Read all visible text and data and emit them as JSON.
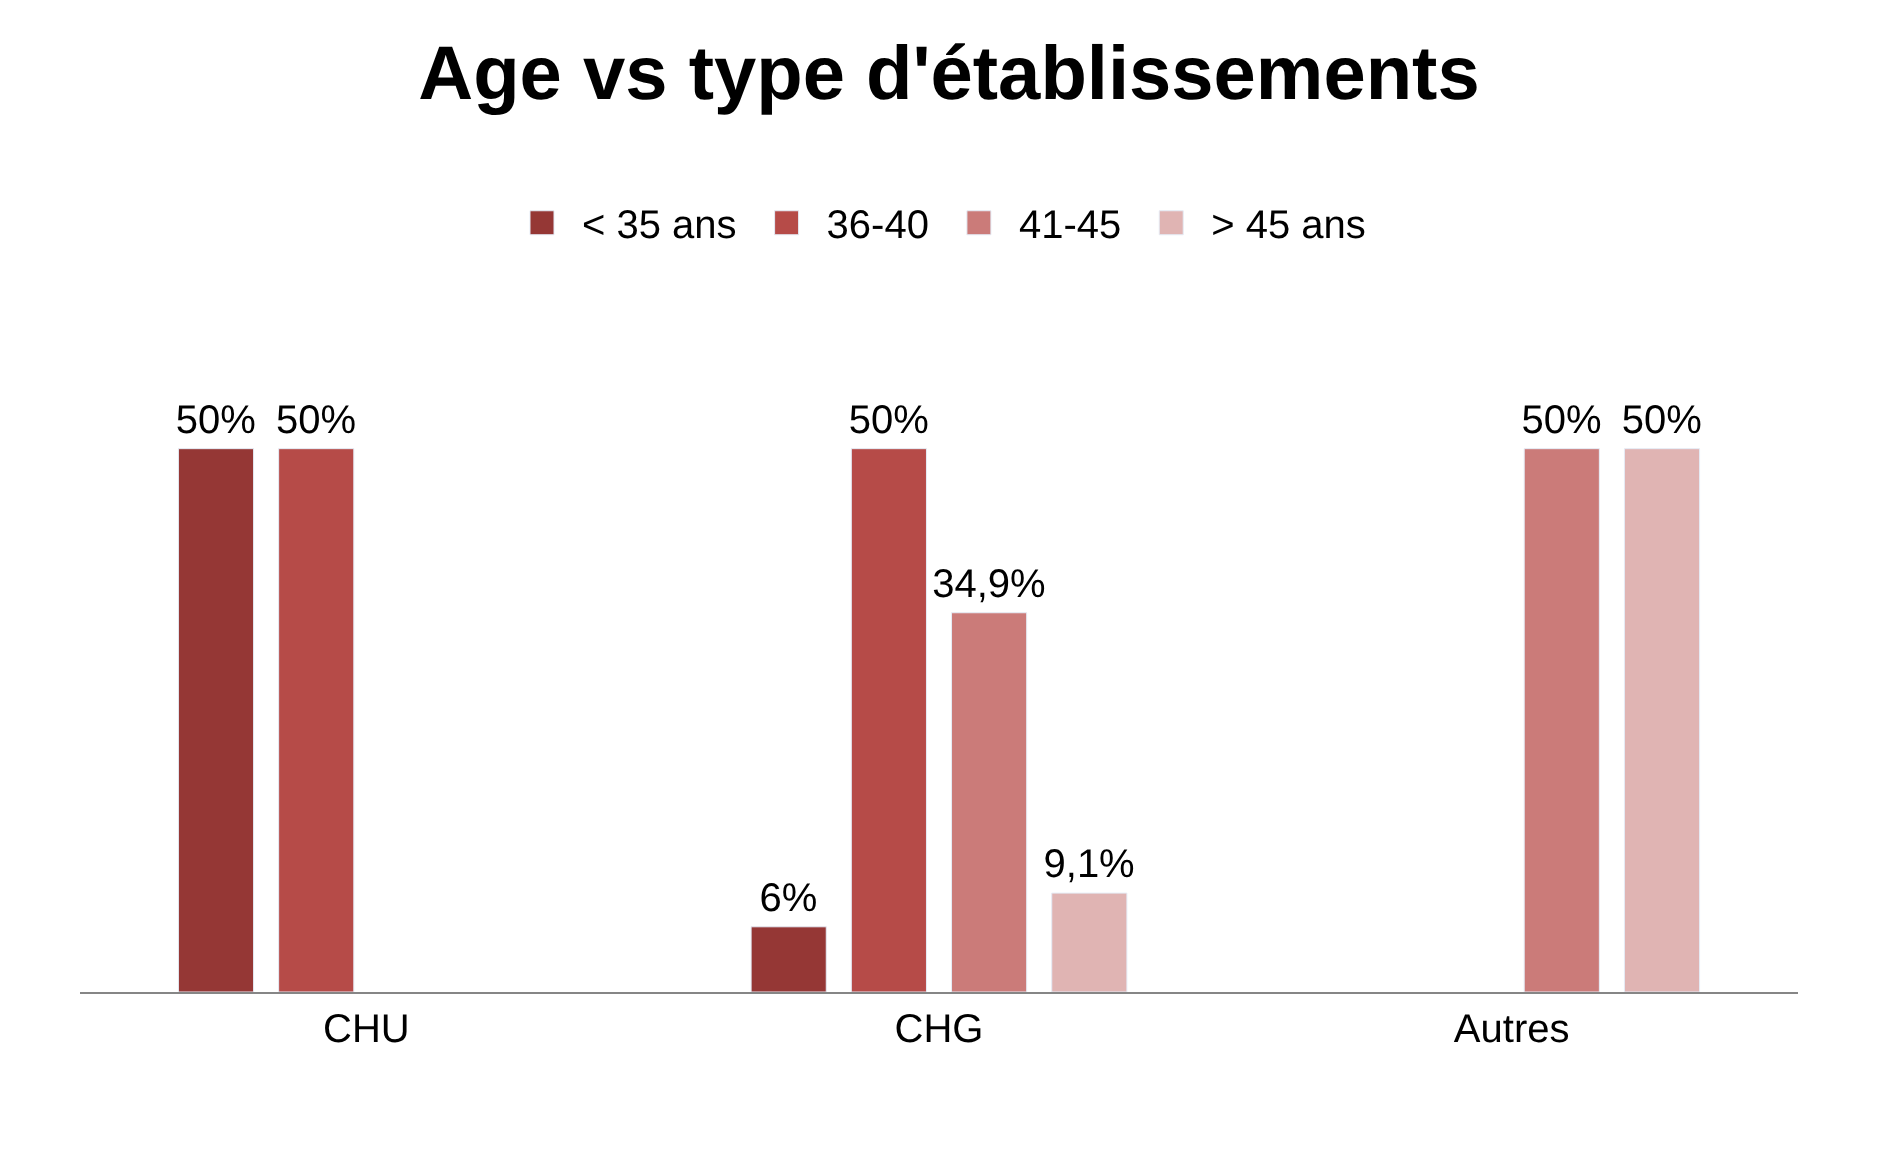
{
  "chart_data": {
    "type": "bar",
    "title": "Age vs type d'établissements",
    "categories": [
      "CHU",
      "CHG",
      "Autres"
    ],
    "series": [
      {
        "name": "< 35 ans",
        "color": "#953735",
        "values": [
          50,
          6,
          null
        ],
        "value_labels": [
          "50%",
          "6%",
          null
        ]
      },
      {
        "name": "36-40",
        "color": "#b64b48",
        "values": [
          50,
          50,
          null
        ],
        "value_labels": [
          "50%",
          "50%",
          null
        ]
      },
      {
        "name": "41-45",
        "color": "#cb7b79",
        "values": [
          null,
          34.9,
          50
        ],
        "value_labels": [
          null,
          "34,9%",
          "50%"
        ]
      },
      {
        "name": "> 45 ans",
        "color": "#e0b4b3",
        "values": [
          null,
          9.1,
          50
        ],
        "value_labels": [
          null,
          "9,1%",
          "50%"
        ]
      }
    ],
    "tick_labels": "x",
    "legend": "top"
  }
}
